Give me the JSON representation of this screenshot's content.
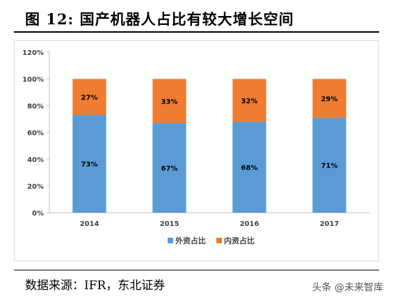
{
  "figure": {
    "title": "图  12:  国产机器人占比有较大增长空间",
    "source": "数据来源：IFR，东北证券",
    "watermark": "头条 @未来智库"
  },
  "chart_data": {
    "type": "bar",
    "stacked": true,
    "categories": [
      "2014",
      "2015",
      "2016",
      "2017"
    ],
    "series": [
      {
        "name": "外资占比",
        "color": "#5b9bd5",
        "values": [
          73,
          67,
          68,
          71
        ],
        "labels": [
          "73%",
          "67%",
          "68%",
          "71%"
        ]
      },
      {
        "name": "内资占比",
        "color": "#ed7d31",
        "values": [
          27,
          33,
          32,
          29
        ],
        "labels": [
          "27%",
          "33%",
          "32%",
          "29%"
        ]
      }
    ],
    "ylim": [
      0,
      120
    ],
    "yticks": [
      0,
      20,
      40,
      60,
      80,
      100,
      120
    ],
    "ytick_labels": [
      "0%",
      "20%",
      "40%",
      "60%",
      "80%",
      "100%",
      "120%"
    ],
    "grid": false,
    "legend": "bottom-center",
    "xlabel": "",
    "ylabel": ""
  }
}
